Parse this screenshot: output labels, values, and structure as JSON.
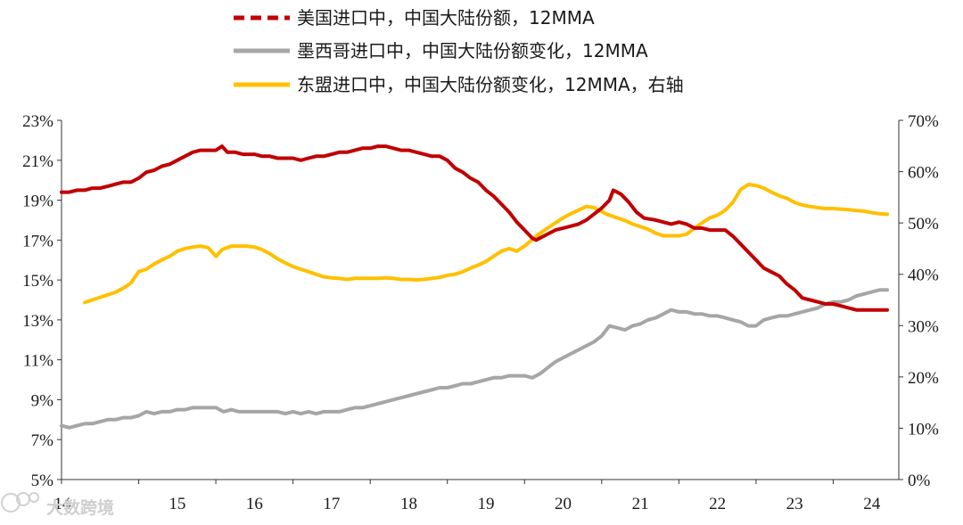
{
  "chart_data": {
    "type": "line",
    "x_labels": [
      "14",
      "15",
      "16",
      "17",
      "18",
      "19",
      "20",
      "21",
      "22",
      "23",
      "24"
    ],
    "x_range": [
      2014.0,
      2024.85
    ],
    "y_left": {
      "ticks": [
        "5%",
        "7%",
        "9%",
        "11%",
        "13%",
        "15%",
        "17%",
        "19%",
        "21%",
        "23%"
      ],
      "range": [
        5,
        23
      ]
    },
    "y_right": {
      "ticks": [
        "0%",
        "10%",
        "20%",
        "30%",
        "40%",
        "50%",
        "60%",
        "70%"
      ],
      "range": [
        0,
        70
      ]
    },
    "series": [
      {
        "name": "美国进口中，中国大陆份额，12MMA",
        "color": "#c00000",
        "axis": "left",
        "legend_style": "dashed",
        "x": [
          2014.0,
          2014.1,
          2014.2,
          2014.3,
          2014.4,
          2014.5,
          2014.6,
          2014.7,
          2014.8,
          2014.9,
          2015.0,
          2015.1,
          2015.2,
          2015.3,
          2015.4,
          2015.5,
          2015.6,
          2015.7,
          2015.8,
          2015.9,
          2016.0,
          2016.08,
          2016.15,
          2016.25,
          2016.35,
          2016.5,
          2016.6,
          2016.7,
          2016.8,
          2016.9,
          2017.0,
          2017.1,
          2017.2,
          2017.3,
          2017.4,
          2017.5,
          2017.6,
          2017.7,
          2017.8,
          2017.9,
          2018.0,
          2018.1,
          2018.2,
          2018.3,
          2018.4,
          2018.5,
          2018.6,
          2018.7,
          2018.8,
          2018.9,
          2019.0,
          2019.1,
          2019.2,
          2019.3,
          2019.4,
          2019.5,
          2019.6,
          2019.7,
          2019.8,
          2019.9,
          2020.0,
          2020.1,
          2020.15,
          2020.2,
          2020.3,
          2020.4,
          2020.5,
          2020.6,
          2020.7,
          2020.8,
          2020.9,
          2021.0,
          2021.1,
          2021.15,
          2021.25,
          2021.35,
          2021.45,
          2021.55,
          2021.7,
          2021.8,
          2021.9,
          2022.0,
          2022.1,
          2022.2,
          2022.3,
          2022.4,
          2022.5,
          2022.6,
          2022.7,
          2022.8,
          2022.9,
          2023.0,
          2023.1,
          2023.2,
          2023.3,
          2023.4,
          2023.5,
          2023.6,
          2023.7,
          2023.8,
          2023.9,
          2024.0,
          2024.1,
          2024.2,
          2024.3,
          2024.4,
          2024.5,
          2024.6,
          2024.7
        ],
        "y": [
          19.4,
          19.4,
          19.5,
          19.5,
          19.6,
          19.6,
          19.7,
          19.8,
          19.9,
          19.9,
          20.1,
          20.4,
          20.5,
          20.7,
          20.8,
          21.0,
          21.2,
          21.4,
          21.5,
          21.5,
          21.5,
          21.7,
          21.4,
          21.4,
          21.3,
          21.3,
          21.2,
          21.2,
          21.1,
          21.1,
          21.1,
          21.0,
          21.1,
          21.2,
          21.2,
          21.3,
          21.4,
          21.4,
          21.5,
          21.6,
          21.6,
          21.7,
          21.7,
          21.6,
          21.5,
          21.5,
          21.4,
          21.3,
          21.2,
          21.2,
          21.0,
          20.6,
          20.4,
          20.1,
          19.9,
          19.5,
          19.2,
          18.8,
          18.4,
          17.9,
          17.5,
          17.1,
          17.0,
          17.1,
          17.3,
          17.5,
          17.6,
          17.7,
          17.8,
          18.0,
          18.3,
          18.6,
          19.0,
          19.5,
          19.3,
          18.9,
          18.4,
          18.1,
          18.0,
          17.9,
          17.8,
          17.9,
          17.8,
          17.6,
          17.6,
          17.5,
          17.5,
          17.5,
          17.2,
          16.8,
          16.4,
          16.0,
          15.6,
          15.4,
          15.2,
          14.8,
          14.5,
          14.1,
          14.0,
          13.9,
          13.8,
          13.8,
          13.7,
          13.6,
          13.5,
          13.5,
          13.5,
          13.5,
          13.5
        ]
      },
      {
        "name": "墨西哥进口中，中国大陆份额变化，12MMA",
        "color": "#a6a6a6",
        "axis": "left",
        "legend_style": "solid",
        "x": [
          2014.0,
          2014.1,
          2014.2,
          2014.3,
          2014.4,
          2014.5,
          2014.6,
          2014.7,
          2014.8,
          2014.9,
          2015.0,
          2015.1,
          2015.2,
          2015.3,
          2015.4,
          2015.5,
          2015.6,
          2015.7,
          2015.8,
          2015.9,
          2016.0,
          2016.1,
          2016.2,
          2016.3,
          2016.4,
          2016.5,
          2016.6,
          2016.7,
          2016.8,
          2016.9,
          2017.0,
          2017.1,
          2017.2,
          2017.3,
          2017.4,
          2017.5,
          2017.6,
          2017.7,
          2017.8,
          2017.9,
          2018.0,
          2018.1,
          2018.2,
          2018.3,
          2018.4,
          2018.5,
          2018.6,
          2018.7,
          2018.8,
          2018.9,
          2019.0,
          2019.1,
          2019.2,
          2019.3,
          2019.4,
          2019.5,
          2019.6,
          2019.7,
          2019.8,
          2019.9,
          2020.0,
          2020.1,
          2020.2,
          2020.3,
          2020.4,
          2020.5,
          2020.6,
          2020.7,
          2020.8,
          2020.9,
          2021.0,
          2021.1,
          2021.2,
          2021.3,
          2021.4,
          2021.5,
          2021.6,
          2021.7,
          2021.8,
          2021.9,
          2022.0,
          2022.1,
          2022.2,
          2022.3,
          2022.4,
          2022.5,
          2022.6,
          2022.7,
          2022.8,
          2022.9,
          2023.0,
          2023.1,
          2023.2,
          2023.3,
          2023.4,
          2023.5,
          2023.6,
          2023.7,
          2023.8,
          2023.9,
          2024.0,
          2024.1,
          2024.2,
          2024.3,
          2024.4,
          2024.5,
          2024.6,
          2024.7
        ],
        "y": [
          7.7,
          7.6,
          7.7,
          7.8,
          7.8,
          7.9,
          8.0,
          8.0,
          8.1,
          8.1,
          8.2,
          8.4,
          8.3,
          8.4,
          8.4,
          8.5,
          8.5,
          8.6,
          8.6,
          8.6,
          8.6,
          8.4,
          8.5,
          8.4,
          8.4,
          8.4,
          8.4,
          8.4,
          8.4,
          8.3,
          8.4,
          8.3,
          8.4,
          8.3,
          8.4,
          8.4,
          8.4,
          8.5,
          8.6,
          8.6,
          8.7,
          8.8,
          8.9,
          9.0,
          9.1,
          9.2,
          9.3,
          9.4,
          9.5,
          9.6,
          9.6,
          9.7,
          9.8,
          9.8,
          9.9,
          10.0,
          10.1,
          10.1,
          10.2,
          10.2,
          10.2,
          10.1,
          10.3,
          10.6,
          10.9,
          11.1,
          11.3,
          11.5,
          11.7,
          11.9,
          12.2,
          12.7,
          12.6,
          12.5,
          12.7,
          12.8,
          13.0,
          13.1,
          13.3,
          13.5,
          13.4,
          13.4,
          13.3,
          13.3,
          13.2,
          13.2,
          13.1,
          13.0,
          12.9,
          12.7,
          12.7,
          13.0,
          13.1,
          13.2,
          13.2,
          13.3,
          13.4,
          13.5,
          13.6,
          13.8,
          13.9,
          13.9,
          14.0,
          14.2,
          14.3,
          14.4,
          14.5,
          14.5
        ]
      },
      {
        "name": "东盟进口中，中国大陆份额变化，12MMA，右轴",
        "color": "#ffc000",
        "axis": "right",
        "legend_style": "solid",
        "x": [
          2014.3,
          2014.4,
          2014.5,
          2014.6,
          2014.7,
          2014.8,
          2014.9,
          2015.0,
          2015.1,
          2015.2,
          2015.3,
          2015.4,
          2015.5,
          2015.6,
          2015.7,
          2015.8,
          2015.9,
          2016.0,
          2016.08,
          2016.2,
          2016.3,
          2016.4,
          2016.5,
          2016.6,
          2016.7,
          2016.8,
          2016.9,
          2017.0,
          2017.1,
          2017.2,
          2017.3,
          2017.4,
          2017.5,
          2017.6,
          2017.7,
          2017.8,
          2017.9,
          2018.0,
          2018.1,
          2018.2,
          2018.3,
          2018.4,
          2018.5,
          2018.6,
          2018.7,
          2018.8,
          2018.9,
          2019.0,
          2019.1,
          2019.2,
          2019.3,
          2019.4,
          2019.5,
          2019.6,
          2019.7,
          2019.8,
          2019.9,
          2020.0,
          2020.1,
          2020.2,
          2020.3,
          2020.4,
          2020.5,
          2020.6,
          2020.7,
          2020.8,
          2020.9,
          2021.0,
          2021.1,
          2021.2,
          2021.3,
          2021.4,
          2021.5,
          2021.6,
          2021.7,
          2021.8,
          2021.9,
          2022.0,
          2022.1,
          2022.2,
          2022.3,
          2022.4,
          2022.5,
          2022.6,
          2022.7,
          2022.8,
          2022.9,
          2023.0,
          2023.1,
          2023.2,
          2023.3,
          2023.4,
          2023.5,
          2023.6,
          2023.7,
          2023.8,
          2023.9,
          2024.0,
          2024.1,
          2024.2,
          2024.3,
          2024.4,
          2024.5,
          2024.6,
          2024.7
        ],
        "y": [
          34.5,
          35.0,
          35.5,
          36.0,
          36.5,
          37.3,
          38.3,
          40.5,
          41.0,
          42.0,
          42.8,
          43.5,
          44.5,
          45.0,
          45.3,
          45.5,
          45.2,
          43.5,
          44.8,
          45.5,
          45.5,
          45.5,
          45.3,
          44.8,
          44.0,
          43.0,
          42.2,
          41.5,
          41.0,
          40.5,
          40.0,
          39.5,
          39.3,
          39.2,
          39.0,
          39.2,
          39.2,
          39.2,
          39.2,
          39.3,
          39.2,
          39.0,
          39.0,
          38.9,
          39.0,
          39.2,
          39.4,
          39.8,
          40.0,
          40.5,
          41.2,
          41.8,
          42.5,
          43.5,
          44.5,
          45.0,
          44.5,
          45.5,
          46.8,
          48.0,
          49.0,
          50.0,
          51.0,
          51.8,
          52.5,
          53.2,
          53.0,
          52.2,
          51.5,
          51.0,
          50.5,
          49.8,
          49.3,
          48.8,
          48.0,
          47.5,
          47.5,
          47.5,
          47.8,
          49.0,
          50.0,
          51.0,
          51.5,
          52.5,
          54.0,
          56.5,
          57.5,
          57.3,
          56.8,
          56.0,
          55.3,
          54.8,
          54.0,
          53.5,
          53.2,
          53.0,
          52.8,
          52.8,
          52.7,
          52.6,
          52.4,
          52.3,
          52.0,
          51.8,
          51.7
        ]
      }
    ]
  },
  "watermark": {
    "text": "大数跨境",
    "icon": "owl-logo"
  }
}
